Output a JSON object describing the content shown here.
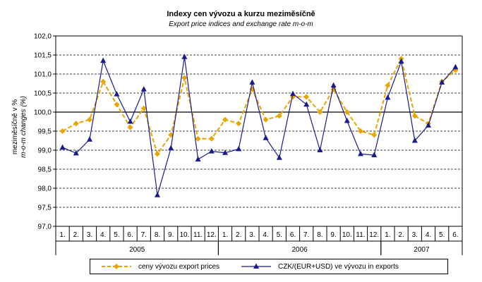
{
  "title": "Indexy cen vývozu a kurzu meziměsíčně",
  "subtitle": "Export price indices and exchange rate m-o-m",
  "chart_data": {
    "type": "line",
    "ylabel_line1": "meziměsíčně v %",
    "ylabel_line2": "m-o-m changes (%)",
    "ylim": [
      97.0,
      102.0
    ],
    "ytick_step": 0.5,
    "ytick_labels": [
      "97,0",
      "97,5",
      "98,0",
      "98,5",
      "99,0",
      "99,5",
      "100,0",
      "100,5",
      "101,0",
      "101,5",
      "102,0"
    ],
    "reference_line": 100.0,
    "grid": "horizontal dashed",
    "categories": [
      "1.",
      "2.",
      "3.",
      "4.",
      "5.",
      "6.",
      "7.",
      "8.",
      "9.",
      "10.",
      "11.",
      "12.",
      "1.",
      "2.",
      "3.",
      "4.",
      "5.",
      "6.",
      "7.",
      "8.",
      "9.",
      "10.",
      "11.",
      "12.",
      "1.",
      "2.",
      "3.",
      "4.",
      "5.",
      "6."
    ],
    "year_groups": [
      {
        "label": "2005",
        "start": 0,
        "count": 12
      },
      {
        "label": "2006",
        "start": 12,
        "count": 12
      },
      {
        "label": "2007",
        "start": 24,
        "count": 6
      }
    ],
    "series": [
      {
        "name": "ceny vývozu export prices",
        "color": "#e8a400",
        "marker": "diamond",
        "dash": true,
        "values": [
          99.5,
          99.7,
          99.8,
          100.8,
          100.2,
          99.6,
          100.1,
          98.9,
          99.4,
          100.9,
          99.3,
          99.3,
          99.8,
          99.7,
          100.6,
          99.8,
          99.9,
          100.4,
          100.4,
          100.0,
          100.6,
          100.0,
          99.5,
          99.4,
          100.7,
          101.4,
          99.9,
          99.7,
          100.8,
          101.1
        ]
      },
      {
        "name": "CZK/(EUR+USD) ve vývozu in exports",
        "color": "#1a1a8c",
        "marker": "triangle",
        "dash": false,
        "values": [
          99.07,
          98.92,
          99.28,
          101.35,
          100.47,
          99.75,
          100.6,
          97.82,
          99.05,
          101.45,
          98.76,
          98.97,
          98.93,
          99.03,
          100.78,
          99.32,
          98.8,
          100.48,
          100.2,
          99.0,
          100.7,
          99.77,
          98.9,
          98.87,
          100.38,
          101.33,
          99.25,
          99.65,
          100.78,
          101.18
        ]
      }
    ]
  }
}
